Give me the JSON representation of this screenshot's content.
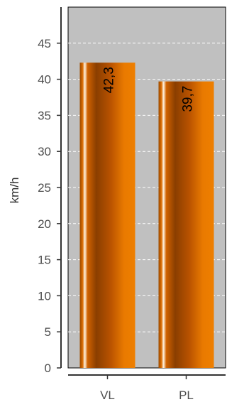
{
  "chart_data": {
    "type": "bar",
    "title": "",
    "xlabel": "",
    "ylabel": "km/h",
    "categories": [
      "VL",
      "PL"
    ],
    "values": [
      42.3,
      39.7
    ],
    "value_labels": [
      "42,3",
      "39,7"
    ],
    "ylim": [
      0,
      50
    ],
    "yticks": [
      0,
      5,
      10,
      15,
      20,
      25,
      30,
      35,
      40,
      45
    ],
    "grid": "horizontal dashed",
    "legend": "none",
    "colors": {
      "panel_background": "#c0c0c0",
      "bar_main": "#e97a00",
      "bar_dark": "#8a3e00",
      "bar_highlight": "#fff3e0",
      "grid": "#ffffff"
    }
  }
}
